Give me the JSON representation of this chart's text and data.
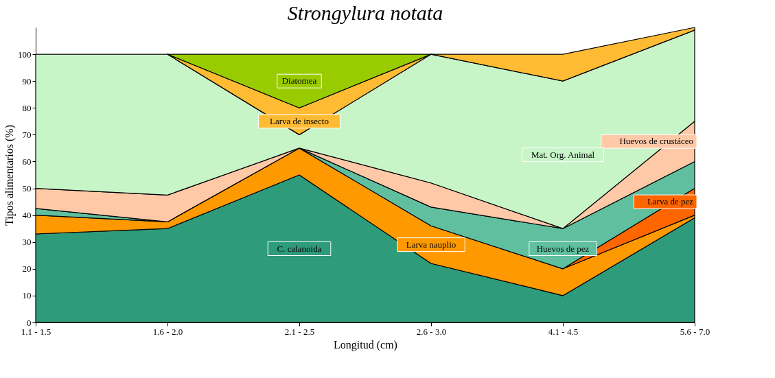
{
  "chart_data": {
    "type": "area",
    "stacked": true,
    "title": "Strongylura notata",
    "xlabel": "Longitud (cm)",
    "ylabel": "Tipos alimentarios (%)",
    "categories": [
      "1.1 - 1.5",
      "1.6 - 2.0",
      "2.1 - 2.5",
      "2.6 - 3.0",
      "4.1 - 4.5",
      "5.6 - 7.0"
    ],
    "ylim": [
      0,
      110
    ],
    "yticks": [
      0,
      10,
      20,
      30,
      40,
      50,
      60,
      70,
      80,
      90,
      100
    ],
    "grid": false,
    "legend": false,
    "series": [
      {
        "name": "C. calanoida",
        "color": "#2e9b7a",
        "values": [
          33,
          35,
          55,
          22,
          10,
          39
        ]
      },
      {
        "name": "Larva nauplio",
        "color": "#ff9900",
        "values": [
          7,
          2.5,
          10,
          14,
          10,
          1
        ]
      },
      {
        "name": "Larva de pez",
        "color": "#ff6600",
        "values": [
          null,
          null,
          null,
          null,
          0,
          10
        ]
      },
      {
        "name": "Huevos de pez",
        "color": "#5fbf9f",
        "values": [
          2.5,
          0,
          0,
          7,
          15,
          10
        ]
      },
      {
        "name": "Huevos de crustáceo",
        "color": "#ffc9a8",
        "values": [
          7.5,
          10,
          0,
          9,
          0,
          15
        ]
      },
      {
        "name": "Mat. Org. Animal",
        "color": "#c8f5c8",
        "values": [
          50,
          52.5,
          5,
          48,
          55,
          34
        ]
      },
      {
        "name": "Larva de insecto",
        "color": "#ffbb33",
        "values": [
          null,
          0,
          10,
          0,
          10,
          1
        ]
      },
      {
        "name": "Diatomea",
        "color": "#99cc00",
        "values": [
          null,
          0,
          20,
          0,
          null,
          null
        ]
      }
    ]
  }
}
